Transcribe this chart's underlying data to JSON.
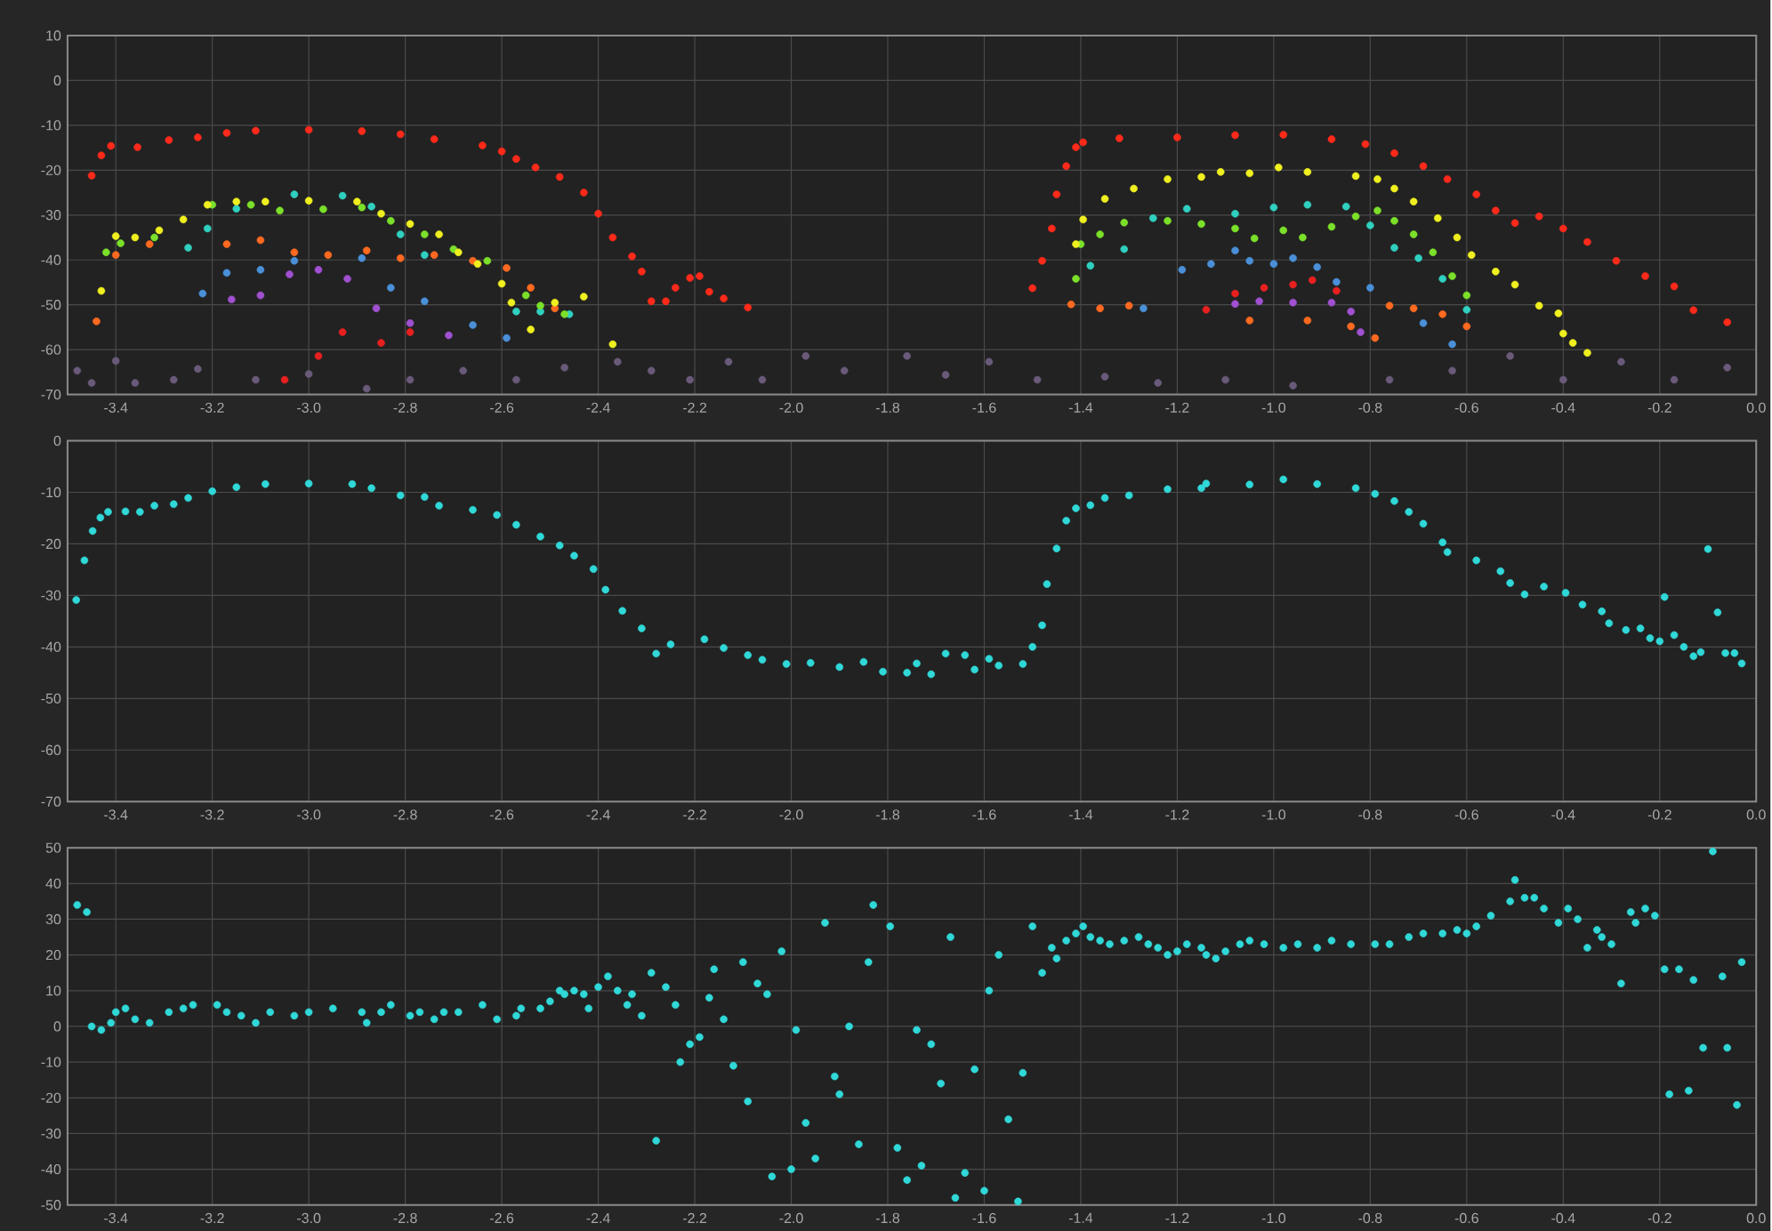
{
  "chart_data": [
    {
      "type": "scatter",
      "xlim": [
        -3.5,
        0
      ],
      "ylim": [
        -70,
        10
      ],
      "xticks": [
        -3.4,
        -3.2,
        {
          "value": -3.0,
          "label": "-3.0"
        },
        -2.8,
        -2.6,
        -2.4,
        -2.2,
        {
          "value": -2.0,
          "label": "-2.0"
        },
        -1.8,
        -1.6,
        -1.4,
        -1.2,
        {
          "value": -1.0,
          "label": "-1.0"
        },
        -0.8,
        -0.6,
        -0.4,
        -0.2,
        {
          "value": 0,
          "label": "0.0"
        }
      ],
      "yticks": [
        10,
        0,
        -10,
        -20,
        -30,
        -40,
        -50,
        -60,
        -70
      ],
      "grid": true,
      "marker": "circle",
      "series": [
        {
          "color": "#6a5a7a",
          "x": [
            -3.48,
            -3.45,
            -3.4,
            -3.36,
            -3.28,
            -3.23,
            -3.11,
            -3.0,
            -2.88,
            -2.79,
            -2.68,
            -2.57,
            -2.47,
            -2.36,
            -2.29,
            -2.21,
            -2.13,
            -2.06,
            -1.97,
            -1.89,
            -1.76,
            -1.68,
            -1.59,
            -1.49,
            -1.35,
            -1.24,
            -1.1,
            -0.96,
            -0.76,
            -0.63,
            -0.51,
            -0.4,
            -0.28,
            -0.17,
            -0.06
          ],
          "values": [
            -64.7,
            -67.4,
            -62.5,
            -67.4,
            -66.7,
            -64.3,
            -66.7,
            -65.4,
            -68.7,
            -66.7,
            -64.7,
            -66.7,
            -64,
            -62.7,
            -64.7,
            -66.7,
            -62.7,
            -66.7,
            -61.4,
            -64.7,
            -61.4,
            -65.6,
            -62.7,
            -66.7,
            -66,
            -67.4,
            -66.7,
            -68,
            -66.7,
            -64.7,
            -61.4,
            -66.7,
            -62.7,
            -66.7,
            -64
          ]
        },
        {
          "color": "#a050d0",
          "x": [
            -3.16,
            -3.1,
            -3.04,
            -2.98,
            -2.92,
            -2.86,
            -2.79,
            -2.71,
            -1.08,
            -1.03,
            -0.96,
            -0.88,
            -0.84,
            -0.82
          ],
          "values": [
            -48.8,
            -47.9,
            -43.2,
            -42.2,
            -44.2,
            -50.8,
            -54.1,
            -56.8,
            -49.8,
            -49.2,
            -49.5,
            -49.5,
            -51.5,
            -56.1
          ]
        },
        {
          "color": "#4a90d8",
          "x": [
            -3.22,
            -3.17,
            -3.1,
            -3.03,
            -2.96,
            -2.89,
            -2.83,
            -2.76,
            -2.66,
            -2.59,
            -1.27,
            -1.19,
            -1.13,
            -1.08,
            -1.05,
            -1.0,
            -0.96,
            -0.91,
            -0.87,
            -0.8,
            -0.69,
            -0.63
          ],
          "values": [
            -47.5,
            -42.9,
            -42.2,
            -40.2,
            null,
            -39.6,
            -46.2,
            -49.2,
            -54.5,
            -57.4,
            -50.8,
            -42.2,
            -40.9,
            -37.9,
            -40.2,
            -40.9,
            -39.6,
            -41.6,
            -44.9,
            -46.2,
            -54.1,
            -58.8
          ]
        },
        {
          "color": "#e82020",
          "x": [
            -3.05,
            -2.98,
            -2.93,
            -2.85,
            -2.79,
            -1.14,
            -1.08,
            -1.02,
            -0.96,
            -0.92,
            -0.87
          ],
          "values": [
            -66.7,
            -61.4,
            -56.1,
            -58.5,
            -56.1,
            -51.1,
            -47.5,
            -46.2,
            -45.5,
            -44.5,
            -46.9
          ]
        },
        {
          "color": "#ff6a20",
          "x": [
            -3.44,
            -3.4,
            -3.33,
            -3.25,
            -3.17,
            -3.1,
            -3.03,
            -2.96,
            -2.88,
            -2.81,
            -2.74,
            -2.66,
            -2.59,
            -2.54,
            -2.49,
            -1.42,
            -1.36,
            -1.3,
            -1.05,
            -0.93,
            -0.84,
            -0.79,
            -0.76,
            -0.71,
            -0.65,
            -0.6
          ],
          "values": [
            -53.7,
            -38.9,
            -36.5,
            null,
            -36.5,
            -35.6,
            -38.3,
            -38.9,
            -37.9,
            -39.6,
            -38.9,
            -40.2,
            -41.8,
            -46.2,
            -50.8,
            -49.9,
            -50.8,
            -50.2,
            -53.5,
            -53.5,
            -54.8,
            -57.4,
            -50.2,
            -50.8,
            -52.1,
            -54.8
          ]
        },
        {
          "color": "#30d0c0",
          "x": [
            -3.25,
            -3.21,
            -3.15,
            -3.09,
            -3.03,
            -2.93,
            -2.87,
            -2.81,
            -2.76,
            -2.57,
            -2.52,
            -2.46,
            -1.38,
            -1.31,
            -1.25,
            -1.18,
            -1.08,
            -1.0,
            -0.93,
            -0.85,
            -0.8,
            -0.75,
            -0.7,
            -0.65,
            -0.6
          ],
          "values": [
            -37.3,
            -33,
            -28.6,
            null,
            -25.4,
            -25.7,
            -28.1,
            -34.3,
            -38.9,
            -51.5,
            -51.5,
            -52.1,
            -41.3,
            -37.6,
            -30.7,
            -28.6,
            -29.7,
            -28.3,
            -27.7,
            -28.1,
            -32.3,
            -37.3,
            -39.6,
            -44.2,
            -51.1
          ]
        },
        {
          "color": "#7be02a",
          "x": [
            -3.42,
            -3.39,
            -3.32,
            -3.26,
            -3.2,
            -3.12,
            -3.06,
            -2.97,
            -2.89,
            -2.83,
            -2.76,
            -2.7,
            -2.63,
            -2.55,
            -2.52,
            -2.47,
            -1.41,
            -1.4,
            -1.36,
            -1.31,
            -1.22,
            -1.15,
            -1.08,
            -1.04,
            -0.98,
            -0.94,
            -0.88,
            -0.83,
            -0.785,
            -0.75,
            -0.71,
            -0.67,
            -0.63,
            -0.6
          ],
          "values": [
            -38.3,
            -36.3,
            -35,
            null,
            -27.7,
            -27.7,
            -29,
            -28.7,
            -28.3,
            -31.3,
            -34.3,
            -37.6,
            -40.2,
            -47.9,
            -50.2,
            -52.1,
            -44.2,
            -36.5,
            -34.3,
            -31.7,
            -31.3,
            -32,
            -33,
            -35.2,
            -33.4,
            -35,
            -32.6,
            -30.3,
            -29,
            -31.3,
            -34.3,
            -38.3,
            -43.6,
            -47.9
          ]
        },
        {
          "color": "#f0f020",
          "x": [
            -3.43,
            -3.4,
            -3.36,
            -3.31,
            -3.26,
            -3.21,
            -3.15,
            -3.09,
            -3.0,
            -2.9,
            -2.85,
            -2.79,
            -2.73,
            -2.69,
            -2.65,
            -2.6,
            -2.58,
            -2.54,
            -2.49,
            -2.43,
            -2.37,
            -1.41,
            -1.395,
            -1.35,
            -1.29,
            -1.22,
            -1.15,
            -1.11,
            -1.05,
            -0.99,
            -0.93,
            -0.83,
            -0.785,
            -0.75,
            -0.71,
            -0.66,
            -0.62,
            -0.59,
            -0.54,
            -0.5,
            -0.45,
            -0.41,
            -0.4,
            -0.38,
            -0.35
          ],
          "values": [
            -46.9,
            -34.7,
            -35,
            -33.4,
            -31,
            -27.7,
            -27,
            -27,
            -26.8,
            -27,
            -29.7,
            -32,
            -34.3,
            -38.3,
            -40.9,
            -45.3,
            -49.5,
            -55.5,
            -49.5,
            -48.2,
            -58.8,
            -36.5,
            -31,
            -26.4,
            -24.1,
            -22,
            -21.5,
            -20.4,
            -20.7,
            -19.4,
            -20.4,
            -21.3,
            -22,
            -24.1,
            -27,
            -30.7,
            -35,
            -38.9,
            -42.6,
            -45.5,
            -50.2,
            -51.9,
            -56.4,
            -58.5,
            -60.7
          ]
        },
        {
          "color": "#ff2a1a",
          "x": [
            -3.45,
            -3.43,
            -3.41,
            -3.355,
            -3.29,
            -3.23,
            -3.17,
            -3.11,
            -3.0,
            -2.89,
            -2.81,
            -2.74,
            -2.64,
            -2.6,
            -2.57,
            -2.53,
            -2.48,
            -2.43,
            -2.4,
            -2.37,
            -2.33,
            -2.31,
            -2.29,
            -2.26,
            -2.24,
            -2.21,
            -2.19,
            -2.17,
            -2.14,
            -2.09,
            -1.5,
            -1.48,
            -1.46,
            -1.45,
            -1.43,
            -1.41,
            -1.395,
            -1.32,
            -1.2,
            -1.08,
            -0.98,
            -0.88,
            -0.81,
            -0.75,
            -0.69,
            -0.64,
            -0.58,
            -0.54,
            -0.5,
            -0.45,
            -0.4,
            -0.35,
            -0.29,
            -0.23,
            -0.17,
            -0.13,
            -0.06
          ],
          "values": [
            -21.2,
            -16.7,
            -14.6,
            -14.9,
            -13.3,
            -12.7,
            -11.7,
            -11.2,
            -11.0,
            -11.3,
            -12.0,
            -13.1,
            -14.5,
            -15.8,
            -17.5,
            -19.4,
            -21.5,
            -25,
            -29.7,
            -35,
            -39.2,
            -42.6,
            -49.2,
            -49.2,
            -46.2,
            -44,
            -43.6,
            -47.1,
            -48.6,
            -50.6,
            -46.3,
            -40.2,
            -33,
            -25.4,
            -19.1,
            -14.9,
            -13.8,
            -12.9,
            -12.7,
            -12.2,
            -12.1,
            -13.1,
            -14.2,
            -16.2,
            -19.1,
            -22,
            -25.4,
            -29,
            -31.8,
            -30.3,
            -33,
            -36,
            -40.2,
            -43.6,
            -45.9,
            -51.2,
            -53.9
          ]
        }
      ]
    },
    {
      "type": "scatter",
      "xlim": [
        -3.5,
        0
      ],
      "ylim": [
        -70,
        0
      ],
      "xticks": [
        -3.4,
        -3.2,
        {
          "value": -3.0,
          "label": "-3.0"
        },
        -2.8,
        -2.6,
        -2.4,
        -2.2,
        {
          "value": -2.0,
          "label": "-2.0"
        },
        -1.8,
        -1.6,
        -1.4,
        -1.2,
        {
          "value": -1.0,
          "label": "-1.0"
        },
        -0.8,
        -0.6,
        -0.4,
        -0.2,
        {
          "value": 0,
          "label": "0.0"
        }
      ],
      "yticks": [
        0,
        -10,
        -20,
        -30,
        -40,
        -50,
        -60,
        -70
      ],
      "grid": true,
      "marker": "circle",
      "series": [
        {
          "color": "#30d8d8",
          "x": [
            -3.482,
            -3.465,
            -3.448,
            -3.432,
            -3.416,
            -3.38,
            -3.35,
            -3.32,
            -3.28,
            -3.25,
            -3.2,
            -3.15,
            -3.09,
            -3.0,
            -2.91,
            -2.87,
            -2.81,
            -2.76,
            -2.73,
            -2.66,
            -2.61,
            -2.57,
            -2.52,
            -2.48,
            -2.45,
            -2.41,
            -2.385,
            -2.35,
            -2.31,
            -2.28,
            -2.25,
            -2.18,
            -2.14,
            -2.09,
            -2.06,
            -2.01,
            -1.96,
            -1.9,
            -1.85,
            -1.81,
            -1.76,
            -1.74,
            -1.71,
            -1.68,
            -1.64,
            -1.62,
            -1.59,
            -1.57,
            -1.52,
            -1.5,
            -1.48,
            -1.47,
            -1.45,
            -1.43,
            -1.41,
            -1.38,
            -1.35,
            -1.3,
            -1.22,
            -1.15,
            -1.14,
            -1.05,
            -0.98,
            -0.91,
            -0.83,
            -0.79,
            -0.75,
            -0.72,
            -0.69,
            -0.65,
            -0.64,
            -0.58,
            -0.53,
            -0.51,
            -0.48,
            -0.44,
            -0.395,
            -0.36,
            -0.32,
            -0.305,
            -0.27,
            -0.24,
            -0.22,
            -0.2,
            -0.19,
            -0.17,
            -0.15,
            -0.13,
            -0.115,
            -0.1,
            -0.08,
            -0.064,
            -0.045,
            -0.03
          ],
          "values": [
            -30.9,
            -23.2,
            -17.5,
            -14.9,
            -13.8,
            -13.7,
            -13.8,
            -12.6,
            -12.3,
            -11.1,
            -9.8,
            -9.0,
            -8.4,
            -8.3,
            -8.4,
            -9.2,
            -10.6,
            -10.9,
            -12.6,
            -13.4,
            -14.4,
            -16.3,
            -18.6,
            -20.3,
            -22.3,
            -24.9,
            -28.9,
            -33,
            -36.4,
            -41.3,
            -39.5,
            -38.5,
            -40.2,
            -41.6,
            -42.5,
            -43.3,
            -43.1,
            -43.9,
            -42.9,
            -44.8,
            -45,
            -43.2,
            -45.3,
            -41.3,
            -41.6,
            -44.4,
            -42.3,
            -43.6,
            -43.3,
            -40,
            -35.8,
            -27.8,
            -20.9,
            -15.5,
            -13.1,
            -12.5,
            -11.1,
            -10.6,
            -9.4,
            -9.2,
            -8.3,
            -8.5,
            -7.5,
            -8.4,
            -9.2,
            -10.3,
            -11.7,
            -13.8,
            -16.1,
            -19.7,
            -21.6,
            -23.2,
            -25.3,
            -27.6,
            -29.8,
            -28.3,
            -29.5,
            -31.8,
            -33.1,
            -35.4,
            -36.7,
            -36.4,
            -38.3,
            -38.9,
            -30.3,
            -37.7,
            -40,
            -41.8,
            -41,
            -21,
            -33.3,
            -41.2,
            -41.2,
            -43.2
          ]
        }
      ]
    },
    {
      "type": "scatter",
      "xlim": [
        -3.5,
        0
      ],
      "ylim": [
        -50,
        50
      ],
      "xticks": [
        -3.4,
        -3.2,
        {
          "value": -3.0,
          "label": "-3.0"
        },
        -2.8,
        -2.6,
        -2.4,
        -2.2,
        {
          "value": -2.0,
          "label": "-2.0"
        },
        -1.8,
        -1.6,
        -1.4,
        -1.2,
        {
          "value": -1.0,
          "label": "-1.0"
        },
        -0.8,
        -0.6,
        -0.4,
        -0.2,
        {
          "value": 0,
          "label": "0.0"
        }
      ],
      "yticks": [
        50,
        40,
        30,
        20,
        10,
        0,
        -10,
        -20,
        -30,
        -40,
        -50
      ],
      "grid": true,
      "marker": "circle",
      "series": [
        {
          "color": "#30d8d8",
          "x": [
            -3.48,
            -3.46,
            -3.45,
            -3.43,
            -3.41,
            -3.4,
            -3.38,
            -3.36,
            -3.33,
            -3.29,
            -3.26,
            -3.24,
            -3.19,
            -3.17,
            -3.14,
            -3.11,
            -3.08,
            -3.03,
            -3.0,
            -2.95,
            -2.89,
            -2.88,
            -2.85,
            -2.83,
            -2.79,
            -2.77,
            -2.74,
            -2.72,
            -2.69,
            -2.64,
            -2.61,
            -2.57,
            -2.56,
            -2.52,
            -2.5,
            -2.48,
            -2.47,
            -2.45,
            -2.43,
            -2.42,
            -2.4,
            -2.38,
            -2.36,
            -2.34,
            -2.33,
            -2.31,
            -2.29,
            -2.28,
            -2.26,
            -2.24,
            -2.23,
            -2.21,
            -2.19,
            -2.17,
            -2.16,
            -2.14,
            -2.12,
            -2.1,
            -2.09,
            -2.07,
            -2.05,
            -2.04,
            -2.02,
            -2.0,
            -1.99,
            -1.97,
            -1.95,
            -1.93,
            -1.91,
            -1.9,
            -1.88,
            -1.86,
            -1.84,
            -1.83,
            -1.795,
            -1.78,
            -1.76,
            -1.74,
            -1.73,
            -1.71,
            -1.69,
            -1.67,
            -1.66,
            -1.64,
            -1.62,
            -1.6,
            -1.59,
            -1.57,
            -1.55,
            -1.53,
            -1.52,
            -1.5,
            -1.48,
            -1.46,
            -1.45,
            -1.43,
            -1.41,
            -1.395,
            -1.38,
            -1.36,
            -1.34,
            -1.31,
            -1.28,
            -1.26,
            -1.24,
            -1.22,
            -1.2,
            -1.18,
            -1.15,
            -1.14,
            -1.12,
            -1.1,
            -1.07,
            -1.05,
            -1.02,
            -0.98,
            -0.95,
            -0.91,
            -0.88,
            -0.84,
            -0.79,
            -0.76,
            -0.72,
            -0.69,
            -0.65,
            -0.62,
            -0.6,
            -0.58,
            -0.55,
            -0.51,
            -0.5,
            -0.48,
            -0.46,
            -0.44,
            -0.41,
            -0.39,
            -0.37,
            -0.35,
            -0.33,
            -0.32,
            -0.3,
            -0.28,
            -0.26,
            -0.25,
            -0.23,
            -0.21,
            -0.19,
            -0.18,
            -0.16,
            -0.14,
            -0.13,
            -0.11,
            -0.09,
            -0.07,
            -0.06,
            -0.04,
            -0.03
          ],
          "values": [
            34,
            32,
            0,
            -1,
            1,
            4,
            5,
            2,
            1,
            4,
            5,
            6,
            6,
            4,
            3,
            1,
            4,
            3,
            4,
            5,
            4,
            1,
            4,
            6,
            3,
            4,
            2,
            4,
            4,
            6,
            2,
            3,
            5,
            5,
            7,
            10,
            9,
            10,
            9,
            5,
            11,
            14,
            10,
            6,
            9,
            3,
            15,
            -32,
            11,
            6,
            -10,
            -5,
            -3,
            8,
            16,
            2,
            -11,
            18,
            -21,
            12,
            9,
            -42,
            21,
            -40,
            -1,
            -27,
            -37,
            29,
            -14,
            -19,
            0,
            -33,
            18,
            34,
            28,
            -34,
            -43,
            -1,
            -39,
            -5,
            -16,
            25,
            -48,
            -41,
            -12,
            -46,
            10,
            20,
            -26,
            -49,
            -13,
            28,
            15,
            22,
            19,
            24,
            26,
            28,
            25,
            24,
            23,
            24,
            25,
            23,
            22,
            20,
            21,
            23,
            22,
            20,
            19,
            21,
            23,
            24,
            23,
            22,
            23,
            22,
            24,
            23,
            23,
            23,
            25,
            26,
            26,
            27,
            26,
            28,
            31,
            35,
            41,
            36,
            36,
            33,
            29,
            33,
            30,
            22,
            27,
            25,
            23,
            12,
            32,
            29,
            33,
            31,
            16,
            -19,
            16,
            -18,
            13,
            -6,
            49,
            14,
            -6,
            -22,
            18
          ]
        }
      ]
    }
  ]
}
